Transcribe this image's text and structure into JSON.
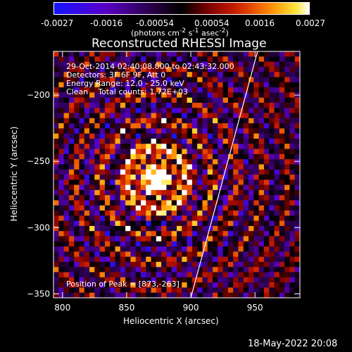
{
  "colorbar": {
    "ticks": [
      "-0.0027",
      "-0.0016",
      "-0.00054",
      "0.00054",
      "0.0016",
      "0.0027"
    ],
    "units_html": "(photons cm<sup>-2</sup> s<sup>-1</sup> asec<sup>-2</sup>)"
  },
  "chart_data": {
    "type": "heatmap",
    "title": "Reconstructed RHESSI Image",
    "xlabel": "Heliocentric X (arcsec)",
    "ylabel": "Heliocentric Y (arcsec)",
    "xlim": [
      793,
      985
    ],
    "ylim": [
      -353,
      -167
    ],
    "xticks": [
      800,
      850,
      900,
      950
    ],
    "yticks": [
      -200,
      -250,
      -300,
      -350
    ],
    "value_range": [
      -0.0027,
      0.0027
    ],
    "peak": [
      873,
      -263
    ],
    "limb_line": [
      [
        900,
        -353
      ],
      [
        952,
        -167
      ]
    ],
    "annotations": [
      "29-Oct-2014 02:40:08.000 to 02:43:32.000",
      "Detectors: 3F 6F 9F, Att 0",
      "Energy Range: 12.0 - 25.0 keV",
      "Clean    Total counts: 1.72E+03"
    ],
    "peak_label": "Position of Peak = [873,-263]"
  },
  "footer": {
    "timestamp": "18-May-2022 20:08"
  }
}
